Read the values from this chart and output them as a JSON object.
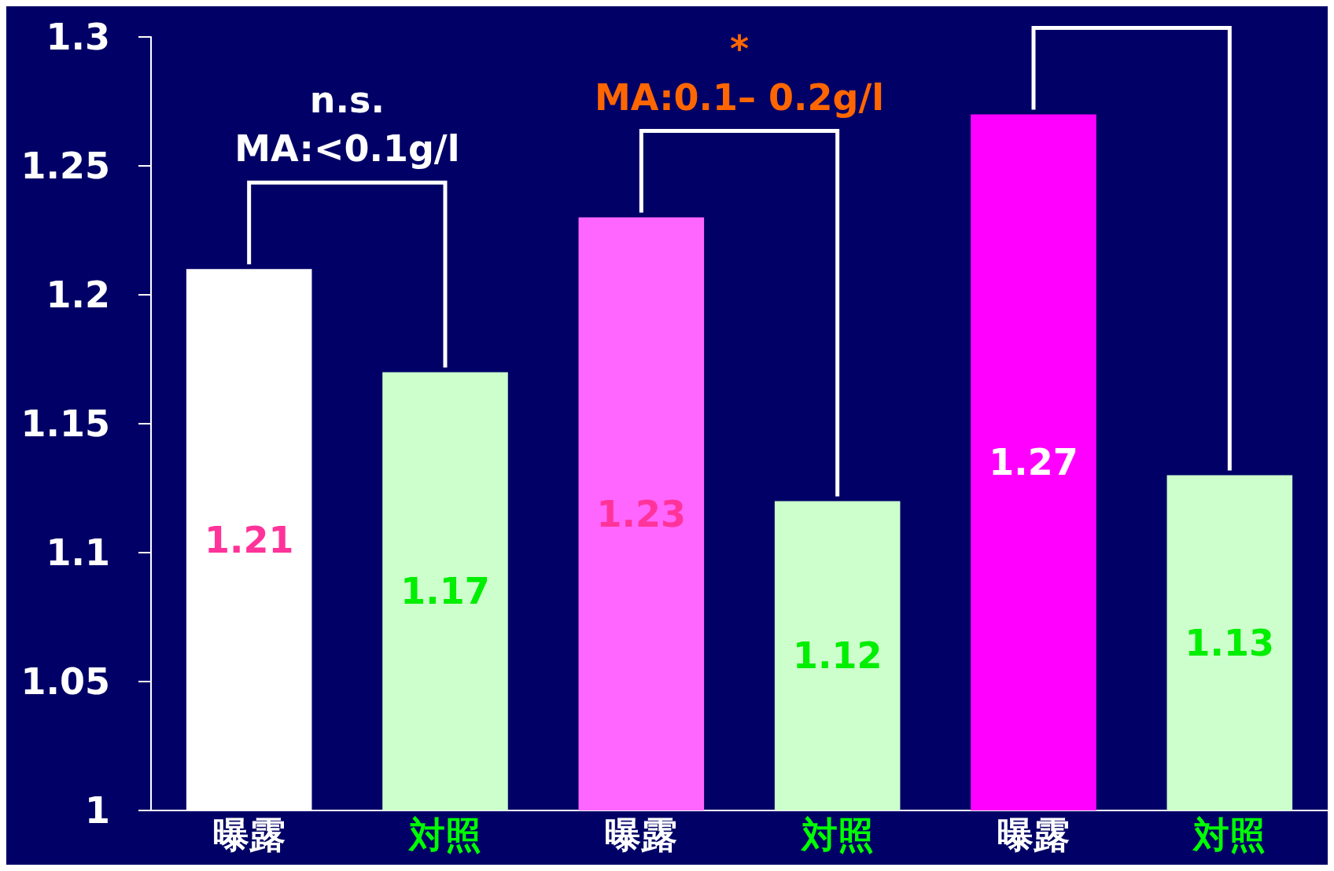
{
  "chart_data": {
    "type": "bar",
    "categories": [
      "曝露",
      "対照",
      "曝露",
      "対照",
      "曝露",
      "対照"
    ],
    "values": [
      1.21,
      1.17,
      1.23,
      1.12,
      1.27,
      1.13
    ],
    "colors": [
      "#ffffff",
      "#ccffcc",
      "#ff66ff",
      "#ccffcc",
      "#ff00ff",
      "#ccffcc"
    ],
    "ylim": [
      1,
      1.3
    ],
    "yticks": [
      1,
      1.05,
      1.1,
      1.15,
      1.2,
      1.25,
      1.3
    ],
    "data_labels": true,
    "grid": false,
    "annotations": [
      "n.s.",
      "MA:<0.1g/l",
      "*",
      "MA:0.1– 0.2g/l"
    ]
  }
}
